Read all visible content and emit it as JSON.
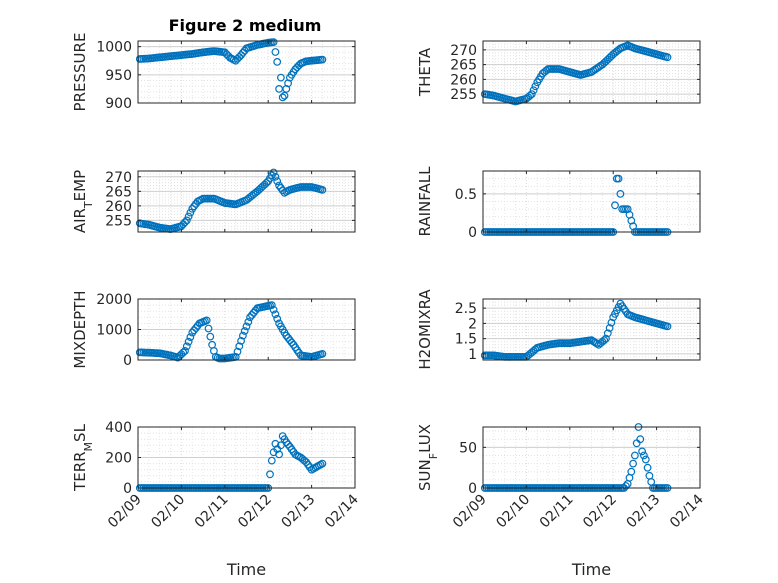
{
  "figure": {
    "title": "Figure 2 medium",
    "marker_color": "#0072bd"
  },
  "chart_data": [
    {
      "type": "scatter",
      "ylabel": "PRESSURE",
      "yticks": [
        900,
        950,
        1000
      ],
      "ylim": [
        900,
        1010
      ],
      "x": [
        "02/09 01:00",
        "02/09 06:00",
        "02/09 12:00",
        "02/09 18:00",
        "02/10 00:00",
        "02/10 06:00",
        "02/10 12:00",
        "02/10 18:00",
        "02/11 00:00",
        "02/11 03:00",
        "02/11 06:00",
        "02/11 09:00",
        "02/11 12:00",
        "02/11 18:00",
        "02/12 00:00",
        "02/12 03:00",
        "02/12 05:00",
        "02/12 06:00",
        "02/12 07:00",
        "02/12 08:00",
        "02/12 09:00",
        "02/12 10:00",
        "02/12 12:00",
        "02/12 15:00",
        "02/12 18:00",
        "02/12 21:00",
        "02/13 00:00",
        "02/13 03:00",
        "02/13 06:00"
      ],
      "y": [
        978,
        979,
        981,
        983,
        985,
        987,
        990,
        992,
        990,
        980,
        975,
        985,
        997,
        1003,
        1007,
        1008,
        973,
        925,
        945,
        910,
        913,
        925,
        945,
        960,
        970,
        974,
        975,
        976,
        977
      ]
    },
    {
      "type": "scatter",
      "ylabel": "THETA",
      "yticks": [
        255,
        260,
        265,
        270
      ],
      "ylim": [
        252,
        273
      ],
      "x": [
        "02/09 01:00",
        "02/09 06:00",
        "02/09 12:00",
        "02/09 18:00",
        "02/10 00:00",
        "02/10 03:00",
        "02/10 06:00",
        "02/10 09:00",
        "02/10 12:00",
        "02/10 18:00",
        "02/11 00:00",
        "02/11 06:00",
        "02/11 12:00",
        "02/11 18:00",
        "02/12 00:00",
        "02/12 04:00",
        "02/12 08:00",
        "02/12 12:00",
        "02/12 18:00",
        "02/13 00:00",
        "02/13 06:00"
      ],
      "y": [
        255,
        254.5,
        253.5,
        252.5,
        253.5,
        255,
        259,
        262,
        263.5,
        263.5,
        262.5,
        261.5,
        262.5,
        265,
        268.5,
        270.5,
        271.5,
        270.5,
        269.5,
        268.5,
        267.5
      ]
    },
    {
      "type": "scatter",
      "ylabel": "AIR_TEMP",
      "yticks": [
        255,
        260,
        265,
        270
      ],
      "ylim": [
        251,
        272
      ],
      "x": [
        "02/09 01:00",
        "02/09 06:00",
        "02/09 12:00",
        "02/09 18:00",
        "02/10 00:00",
        "02/10 03:00",
        "02/10 06:00",
        "02/10 09:00",
        "02/10 12:00",
        "02/10 18:00",
        "02/11 00:00",
        "02/11 06:00",
        "02/11 12:00",
        "02/11 18:00",
        "02/12 00:00",
        "02/12 03:00",
        "02/12 06:00",
        "02/12 09:00",
        "02/12 12:00",
        "02/12 18:00",
        "02/13 00:00",
        "02/13 06:00"
      ],
      "y": [
        254,
        253.5,
        252.5,
        252,
        253,
        255,
        259,
        261.5,
        262.5,
        262.5,
        261,
        260.5,
        262,
        265,
        268.5,
        271.5,
        267,
        264.5,
        265.5,
        266.5,
        266.5,
        265.5
      ]
    },
    {
      "type": "scatter",
      "ylabel": "RAINFALL",
      "yticks": [
        0,
        0.5
      ],
      "ylim": [
        0,
        0.8
      ],
      "x": [
        "02/09 01:00",
        "02/09 06:00",
        "02/09 12:00",
        "02/09 18:00",
        "02/10 00:00",
        "02/10 06:00",
        "02/10 12:00",
        "02/10 18:00",
        "02/11 00:00",
        "02/11 06:00",
        "02/11 12:00",
        "02/11 18:00",
        "02/12 00:00",
        "02/12 02:00",
        "02/12 03:00",
        "02/12 05:00",
        "02/12 06:00",
        "02/12 08:00",
        "02/12 12:00",
        "02/12 18:00",
        "02/13 00:00",
        "02/13 06:00"
      ],
      "y": [
        0,
        0,
        0,
        0,
        0,
        0,
        0,
        0,
        0,
        0,
        0,
        0,
        0,
        0.7,
        0.7,
        0.3,
        0.3,
        0.3,
        0,
        0,
        0,
        0
      ]
    },
    {
      "type": "scatter",
      "ylabel": "MIXDEPTH",
      "yticks": [
        0,
        1000,
        2000
      ],
      "ylim": [
        0,
        2000
      ],
      "x": [
        "02/09 01:00",
        "02/09 06:00",
        "02/09 12:00",
        "02/09 18:00",
        "02/09 22:00",
        "02/10 02:00",
        "02/10 06:00",
        "02/10 10:00",
        "02/10 14:00",
        "02/10 17:00",
        "02/10 19:00",
        "02/10 21:00",
        "02/11 00:00",
        "02/11 06:00",
        "02/11 10:00",
        "02/11 14:00",
        "02/11 18:00",
        "02/11 22:00",
        "02/12 02:00",
        "02/12 06:00",
        "02/12 10:00",
        "02/12 14:00",
        "02/12 18:00",
        "02/13 00:00",
        "02/13 06:00"
      ],
      "y": [
        250,
        240,
        220,
        150,
        80,
        300,
        900,
        1200,
        1300,
        500,
        100,
        50,
        50,
        100,
        800,
        1400,
        1700,
        1750,
        1800,
        1200,
        800,
        500,
        150,
        100,
        200
      ]
    },
    {
      "type": "scatter",
      "ylabel": "H2OMIXRA",
      "yticks": [
        1,
        1.5,
        2,
        2.5
      ],
      "ylim": [
        0.8,
        2.8
      ],
      "x": [
        "02/09 01:00",
        "02/09 06:00",
        "02/09 12:00",
        "02/09 18:00",
        "02/10 00:00",
        "02/10 06:00",
        "02/10 12:00",
        "02/10 18:00",
        "02/11 00:00",
        "02/11 06:00",
        "02/11 12:00",
        "02/11 16:00",
        "02/11 20:00",
        "02/12 00:00",
        "02/12 04:00",
        "02/12 08:00",
        "02/12 12:00",
        "02/12 18:00",
        "02/13 00:00",
        "02/13 06:00"
      ],
      "y": [
        0.95,
        0.95,
        0.9,
        0.9,
        0.9,
        1.2,
        1.3,
        1.35,
        1.35,
        1.4,
        1.45,
        1.3,
        1.5,
        2.2,
        2.65,
        2.3,
        2.2,
        2.1,
        2.0,
        1.9
      ]
    },
    {
      "type": "scatter",
      "ylabel": "TERR_MSL",
      "yticks": [
        0,
        200,
        400
      ],
      "ylim": [
        0,
        400
      ],
      "x": [
        "02/09 01:00",
        "02/09 06:00",
        "02/09 12:00",
        "02/09 18:00",
        "02/10 00:00",
        "02/10 06:00",
        "02/10 12:00",
        "02/10 18:00",
        "02/11 00:00",
        "02/11 06:00",
        "02/11 12:00",
        "02/11 18:00",
        "02/12 00:00",
        "02/12 02:00",
        "02/12 04:00",
        "02/12 06:00",
        "02/12 08:00",
        "02/12 10:00",
        "02/12 12:00",
        "02/12 15:00",
        "02/12 18:00",
        "02/12 21:00",
        "02/13 00:00",
        "02/13 03:00",
        "02/13 06:00"
      ],
      "y": [
        0,
        0,
        0,
        0,
        0,
        0,
        0,
        0,
        0,
        0,
        0,
        0,
        0,
        180,
        290,
        220,
        340,
        300,
        270,
        220,
        200,
        170,
        120,
        140,
        160
      ]
    },
    {
      "type": "scatter",
      "ylabel": "SUN_FLUX",
      "yticks": [
        0,
        50
      ],
      "ylim": [
        0,
        75
      ],
      "x": [
        "02/09 01:00",
        "02/09 06:00",
        "02/09 12:00",
        "02/09 18:00",
        "02/10 00:00",
        "02/10 06:00",
        "02/10 12:00",
        "02/10 18:00",
        "02/11 00:00",
        "02/11 06:00",
        "02/11 12:00",
        "02/11 18:00",
        "02/12 00:00",
        "02/12 06:00",
        "02/12 08:00",
        "02/12 10:00",
        "02/12 12:00",
        "02/12 13:00",
        "02/12 14:00",
        "02/12 15:00",
        "02/12 16:00",
        "02/12 18:00",
        "02/12 20:00",
        "02/12 22:00",
        "02/13 00:00",
        "02/13 06:00"
      ],
      "y": [
        0,
        0,
        0,
        0,
        0,
        0,
        0,
        0,
        0,
        0,
        0,
        0,
        0,
        0,
        5,
        20,
        40,
        55,
        75,
        60,
        45,
        35,
        15,
        0,
        0,
        0
      ]
    }
  ],
  "xaxis": {
    "ticks": [
      "02/09",
      "02/10",
      "02/11",
      "02/12",
      "02/13",
      "02/14"
    ],
    "xlabel": "Time"
  }
}
